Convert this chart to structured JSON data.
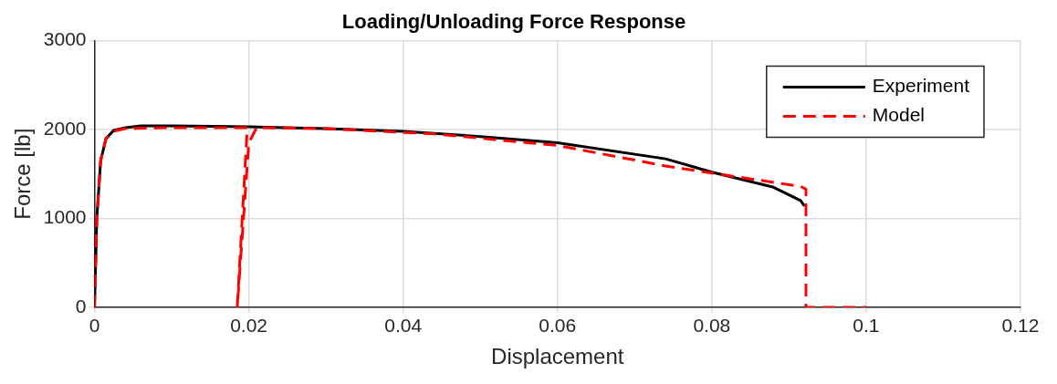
{
  "chart_data": {
    "type": "line",
    "title": "Loading/Unloading Force Response",
    "xlabel": "Displacement",
    "ylabel": "Force [lb]",
    "xlim": [
      0,
      0.12
    ],
    "xticks": [
      0,
      0.02,
      0.04,
      0.06,
      0.08,
      0.1,
      0.12
    ],
    "ylim": [
      0,
      3000
    ],
    "yticks": [
      0,
      1000,
      2000,
      3000
    ],
    "grid": true,
    "legend": "top right",
    "marker": "none",
    "series": [
      {
        "name": "Experiment",
        "color": "#000000",
        "line_style": "solid",
        "x": [
          0,
          0.0003,
          0.0008,
          0.0015,
          0.0025,
          0.004,
          0.006,
          0.01,
          0.02,
          0.03,
          0.04,
          0.05,
          0.06,
          0.074,
          0.08,
          0.088,
          0.0915,
          0.092
        ],
        "values": [
          0,
          1000,
          1650,
          1900,
          1990,
          2020,
          2040,
          2040,
          2030,
          2010,
          1980,
          1920,
          1850,
          1670,
          1520,
          1350,
          1200,
          1140
        ]
      },
      {
        "name": "Model",
        "color": "#ff0000",
        "line_style": "dashed",
        "x": [
          0,
          0.0003,
          0.0008,
          0.0015,
          0.0025,
          0.004,
          0.01,
          0.0198,
          0.0185,
          0.02,
          0.021,
          0.03,
          0.044,
          0.06,
          0.074,
          0.08,
          0.0915,
          0.0922,
          0.0922,
          0.1
        ],
        "values": [
          0,
          1000,
          1650,
          1900,
          1980,
          2010,
          2020,
          2020,
          0,
          1850,
          2020,
          2010,
          1950,
          1820,
          1590,
          1510,
          1360,
          1330,
          0,
          0
        ]
      }
    ]
  }
}
